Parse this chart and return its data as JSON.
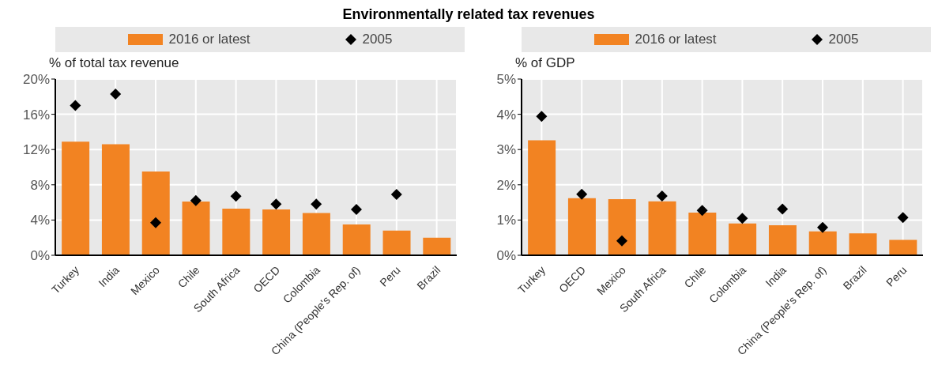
{
  "chart_data": [
    {
      "type": "bar",
      "title": "Environmentally related tax revenues",
      "ylabel": "% of total tax revenue",
      "categories": [
        "Turkey",
        "India",
        "Mexico",
        "Chile",
        "South Africa",
        "OECD",
        "Colombia",
        "China (People's Rep. of)",
        "Peru",
        "Brazil"
      ],
      "series": [
        {
          "name": "2016 or latest",
          "color": "#f28322",
          "values": [
            12.9,
            12.6,
            9.5,
            6.1,
            5.3,
            5.2,
            4.8,
            3.5,
            2.8,
            2.0
          ]
        },
        {
          "name": "2005",
          "type": "scatter",
          "color": "#000000",
          "values": [
            17.0,
            18.3,
            3.7,
            6.2,
            6.7,
            5.8,
            5.8,
            5.2,
            6.9,
            null
          ]
        }
      ],
      "ylim": [
        0,
        20
      ],
      "yticks": [
        {
          "value": 0,
          "label": "0%"
        },
        {
          "value": 4,
          "label": "4%"
        },
        {
          "value": 8,
          "label": "8%"
        },
        {
          "value": 12,
          "label": "12%"
        },
        {
          "value": 16,
          "label": "16%"
        },
        {
          "value": 20,
          "label": "20%"
        }
      ],
      "grid": true,
      "legend": "top",
      "marker": "diamond"
    },
    {
      "type": "bar",
      "ylabel": "% of GDP",
      "categories": [
        "Turkey",
        "OECD",
        "Mexico",
        "South Africa",
        "Chile",
        "Colombia",
        "India",
        "China (People's Rep. of)",
        "Brazil",
        "Peru"
      ],
      "series": [
        {
          "name": "2016 or latest",
          "color": "#f28322",
          "values": [
            3.26,
            1.62,
            1.59,
            1.53,
            1.21,
            0.9,
            0.85,
            0.68,
            0.62,
            0.44
          ]
        },
        {
          "name": "2005",
          "type": "scatter",
          "color": "#000000",
          "values": [
            3.94,
            1.73,
            0.41,
            1.68,
            1.27,
            1.05,
            1.31,
            0.79,
            null,
            1.07
          ]
        }
      ],
      "ylim": [
        0,
        5
      ],
      "yticks": [
        {
          "value": 0,
          "label": "0%"
        },
        {
          "value": 1,
          "label": "1%"
        },
        {
          "value": 2,
          "label": "2%"
        },
        {
          "value": 3,
          "label": "3%"
        },
        {
          "value": 4,
          "label": "4%"
        },
        {
          "value": 5,
          "label": "5%"
        }
      ],
      "grid": true,
      "legend": "top",
      "marker": "diamond"
    }
  ]
}
